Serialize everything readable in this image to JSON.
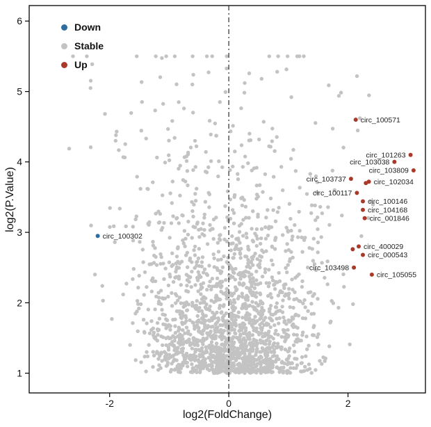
{
  "chart_data": {
    "type": "scatter",
    "title": "",
    "xlabel": "log2(FoldChange)",
    "ylabel": "log2(P.Value)",
    "xlim": [
      -3.35,
      3.3
    ],
    "ylim": [
      0.72,
      6.22
    ],
    "x_ticks": [
      -2,
      0,
      2
    ],
    "y_ticks": [
      1,
      2,
      3,
      4,
      5,
      6
    ],
    "vline_x": 0,
    "grid": false,
    "legend": {
      "position": "top-left",
      "items": [
        {
          "label": "Down",
          "color": "#2d6d9f"
        },
        {
          "label": "Stable",
          "color": "#c3c3c3"
        },
        {
          "label": "Up",
          "color": "#a93a2a"
        }
      ]
    },
    "series": [
      {
        "name": "Down",
        "color": "#2d6d9f",
        "points": [
          {
            "gene": "circ_100302",
            "x": -2.2,
            "y": 2.95,
            "label_side": "right"
          }
        ]
      },
      {
        "name": "Up",
        "color": "#a93a2a",
        "points": [
          {
            "gene": "circ_100571",
            "x": 2.13,
            "y": 4.6,
            "label_side": "right"
          },
          {
            "gene": "circ_101263",
            "x": 3.05,
            "y": 4.1,
            "label_side": "left"
          },
          {
            "gene": "circ_103038",
            "x": 2.78,
            "y": 4.0,
            "label_side": "left"
          },
          {
            "gene": "circ_103809",
            "x": 3.1,
            "y": 3.88,
            "label_side": "left"
          },
          {
            "gene": "circ_103737",
            "x": 2.05,
            "y": 3.76,
            "label_side": "left"
          },
          {
            "gene": "circ_102034",
            "x": 2.35,
            "y": 3.72,
            "label_side": "right"
          },
          {
            "gene": "circ_100117",
            "x": 2.15,
            "y": 3.56,
            "label_side": "left"
          },
          {
            "gene": "circ_100146",
            "x": 2.25,
            "y": 3.44,
            "label_side": "right"
          },
          {
            "gene": "circ_104168",
            "x": 2.25,
            "y": 3.32,
            "label_side": "right"
          },
          {
            "gene": "circ_001846",
            "x": 2.28,
            "y": 3.2,
            "label_side": "right"
          },
          {
            "gene": "circ_400029",
            "x": 2.18,
            "y": 2.8,
            "label_side": "right"
          },
          {
            "gene": "circ_000543",
            "x": 2.25,
            "y": 2.68,
            "label_side": "right"
          },
          {
            "gene": "circ_103498",
            "x": 2.1,
            "y": 2.5,
            "label_side": "left"
          },
          {
            "gene": "circ_105055",
            "x": 2.4,
            "y": 2.4,
            "label_side": "right"
          }
        ],
        "unlabeled": [
          {
            "x": 2.08,
            "y": 2.76
          },
          {
            "x": 2.3,
            "y": 3.7
          }
        ]
      },
      {
        "name": "Stable",
        "color": "#c3c3c3",
        "generated": {
          "count": 1900,
          "seed": 11,
          "rate": 0.95,
          "u_max": 0.993,
          "y_min": 1.0,
          "y_cap": 5.5,
          "sd_base": 0.5,
          "sd_slope": 0.13,
          "x_clip": 3.22,
          "fixed": [
            [
              0.55,
              5.18
            ],
            [
              1.05,
              4.92
            ],
            [
              -0.6,
              4.7
            ],
            [
              2.2,
              4.62
            ],
            [
              -1.9,
              4.3
            ],
            [
              -0.15,
              4.85
            ]
          ]
        }
      }
    ]
  }
}
